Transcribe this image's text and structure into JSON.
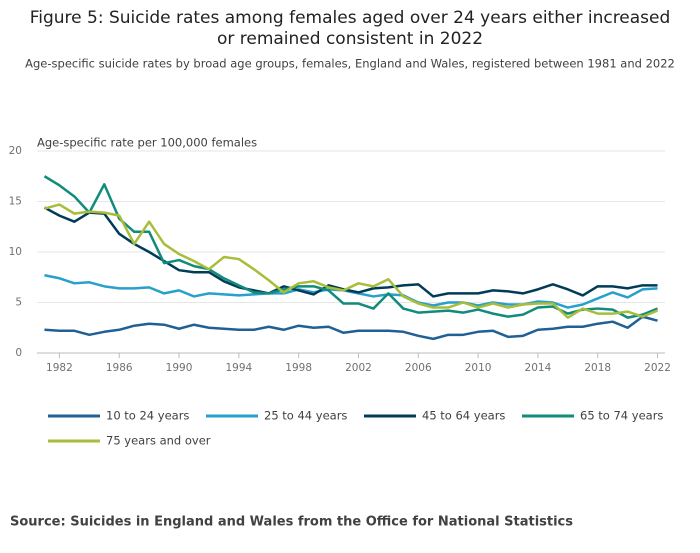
{
  "chart_data": {
    "type": "line",
    "title": "Figure 5: Suicide rates among females aged over 24 years either increased or remained consistent in 2022",
    "subtitle": "Age-specific suicide rates by broad age groups, females, England and Wales, registered between 1981 and 2022",
    "y_label": "Age-specific rate per 100,000 females",
    "source": "Source: Suicides in England and Wales from the Office for National Statistics",
    "x": [
      1981,
      1982,
      1983,
      1984,
      1985,
      1986,
      1987,
      1988,
      1989,
      1990,
      1991,
      1992,
      1993,
      1994,
      1995,
      1996,
      1997,
      1998,
      1999,
      2000,
      2001,
      2002,
      2003,
      2004,
      2005,
      2006,
      2007,
      2008,
      2009,
      2010,
      2011,
      2012,
      2013,
      2014,
      2015,
      2016,
      2017,
      2018,
      2019,
      2020,
      2021,
      2022
    ],
    "xlim": [
      1980.5,
      2022.5
    ],
    "xticks": [
      1982,
      1986,
      1990,
      1994,
      1998,
      2002,
      2006,
      2010,
      2014,
      2018,
      2022
    ],
    "ylim": [
      0,
      20
    ],
    "yticks": [
      0,
      5,
      10,
      15,
      20
    ],
    "grid": true,
    "series": [
      {
        "name": "10 to 24 years",
        "color": "#206095",
        "values": [
          2.3,
          2.2,
          2.2,
          1.8,
          2.1,
          2.3,
          2.7,
          2.9,
          2.8,
          2.4,
          2.8,
          2.5,
          2.4,
          2.3,
          2.3,
          2.6,
          2.3,
          2.7,
          2.5,
          2.6,
          2.0,
          2.2,
          2.2,
          2.2,
          2.1,
          1.7,
          1.4,
          1.8,
          1.8,
          2.1,
          2.2,
          1.6,
          1.7,
          2.3,
          2.4,
          2.6,
          2.6,
          2.9,
          3.1,
          2.5,
          3.6,
          3.2
        ]
      },
      {
        "name": "25 to 44 years",
        "color": "#27a0cc",
        "values": [
          7.7,
          7.4,
          6.9,
          7.0,
          6.6,
          6.4,
          6.4,
          6.5,
          5.9,
          6.2,
          5.6,
          5.9,
          5.8,
          5.7,
          5.8,
          5.9,
          5.9,
          6.3,
          6.0,
          6.3,
          6.2,
          5.9,
          5.6,
          5.8,
          5.7,
          5.0,
          4.7,
          5.0,
          5.0,
          4.7,
          5.0,
          4.8,
          4.8,
          5.1,
          5.0,
          4.5,
          4.8,
          5.4,
          6.0,
          5.5,
          6.3,
          6.4
        ]
      },
      {
        "name": "45 to 64 years",
        "color": "#003c57",
        "values": [
          14.4,
          13.6,
          13.0,
          13.9,
          13.8,
          11.8,
          10.8,
          10.0,
          9.1,
          8.2,
          8.0,
          8.0,
          7.1,
          6.5,
          6.2,
          5.9,
          6.6,
          6.2,
          5.8,
          6.7,
          6.3,
          6.0,
          6.4,
          6.5,
          6.7,
          6.8,
          5.6,
          5.9,
          5.9,
          5.9,
          6.2,
          6.1,
          5.9,
          6.3,
          6.8,
          6.3,
          5.7,
          6.6,
          6.6,
          6.4,
          6.7,
          6.7
        ]
      },
      {
        "name": "65 to 74 years",
        "color": "#118c7b",
        "values": [
          17.5,
          16.6,
          15.5,
          13.9,
          16.7,
          13.3,
          12.0,
          12.0,
          8.9,
          9.2,
          8.6,
          8.3,
          7.4,
          6.7,
          6.0,
          5.9,
          6.3,
          6.6,
          6.6,
          6.2,
          4.9,
          4.9,
          4.4,
          5.9,
          4.4,
          4.0,
          4.1,
          4.2,
          4.0,
          4.3,
          3.9,
          3.6,
          3.8,
          4.5,
          4.6,
          3.9,
          4.3,
          4.4,
          4.3,
          3.5,
          3.8,
          4.4
        ]
      },
      {
        "name": "75 years and over",
        "color": "#a8bd3a",
        "values": [
          14.3,
          14.7,
          13.8,
          14.0,
          13.9,
          13.6,
          10.8,
          13.0,
          10.8,
          9.8,
          9.1,
          8.3,
          9.5,
          9.3,
          8.3,
          7.2,
          6.0,
          6.9,
          7.1,
          6.5,
          6.2,
          6.9,
          6.6,
          7.3,
          5.6,
          4.9,
          4.5,
          4.5,
          5.0,
          4.5,
          4.9,
          4.5,
          4.8,
          4.9,
          4.9,
          3.5,
          4.4,
          3.9,
          3.9,
          4.1,
          3.6,
          4.2
        ]
      }
    ]
  }
}
